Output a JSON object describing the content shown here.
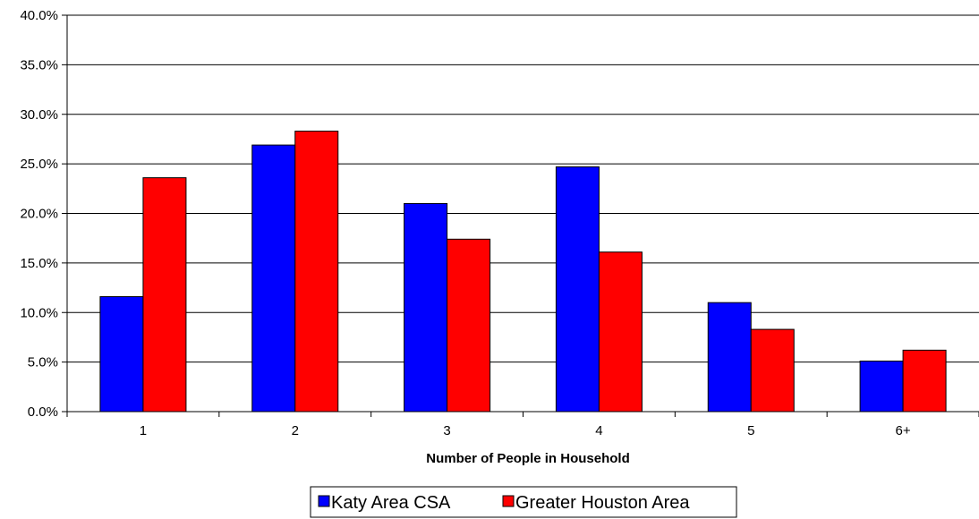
{
  "chart_data": {
    "type": "bar",
    "title": "",
    "xlabel": "Number of People in Household",
    "ylabel": "",
    "categories": [
      "1",
      "2",
      "3",
      "4",
      "5",
      "6+"
    ],
    "series": [
      {
        "name": "Katy Area CSA",
        "color": "#0000ff",
        "values": [
          11.6,
          26.9,
          21.0,
          24.7,
          11.0,
          5.1
        ]
      },
      {
        "name": "Greater Houston Area",
        "color": "#ff0000",
        "values": [
          23.6,
          28.3,
          17.4,
          16.1,
          8.3,
          6.2
        ]
      }
    ],
    "ylim": [
      0,
      40
    ],
    "yticks": [
      "0.0%",
      "5.0%",
      "10.0%",
      "15.0%",
      "20.0%",
      "25.0%",
      "30.0%",
      "35.0%",
      "40.0%"
    ],
    "grid": true,
    "legend_position": "bottom"
  }
}
